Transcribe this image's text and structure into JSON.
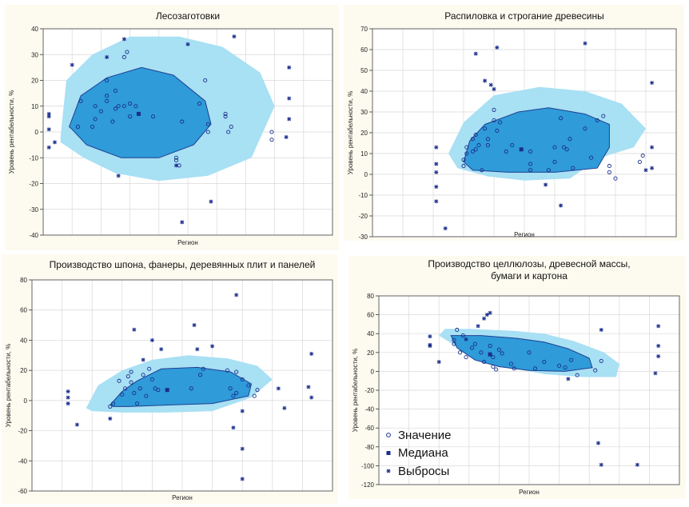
{
  "colors": {
    "outer": "#a8e0f4",
    "inner": "#2f9bd9",
    "innerStroke": "#1f3f8f",
    "point": "#1b2e8c",
    "grid": "#d8d8d8"
  },
  "legend": {
    "value_label": "Значение",
    "median_label": "Медиана",
    "outlier_label": "Выбросы"
  },
  "chart_data": [
    {
      "type": "scatter",
      "title": "Лесозаготовки",
      "xlabel": "Регион",
      "ylabel": "Уровень рентабельности, %",
      "ylim": [
        -40,
        40
      ],
      "yticks": [
        -40,
        -30,
        -20,
        -10,
        0,
        10,
        20,
        30,
        40
      ],
      "xlim": [
        0,
        100
      ],
      "outer_hull": [
        [
          6,
          -2
        ],
        [
          8,
          20
        ],
        [
          17,
          30
        ],
        [
          30,
          37
        ],
        [
          47,
          37
        ],
        [
          62,
          33
        ],
        [
          75,
          23
        ],
        [
          80,
          10
        ],
        [
          72,
          -10
        ],
        [
          57,
          -17
        ],
        [
          40,
          -19
        ],
        [
          25,
          -16
        ],
        [
          14,
          -10
        ],
        [
          6,
          -4
        ]
      ],
      "inner_hull": [
        [
          9,
          2
        ],
        [
          13,
          14
        ],
        [
          22,
          21
        ],
        [
          34,
          25
        ],
        [
          45,
          22
        ],
        [
          56,
          12
        ],
        [
          58,
          3
        ],
        [
          52,
          -5
        ],
        [
          40,
          -10
        ],
        [
          27,
          -10
        ],
        [
          15,
          -5
        ],
        [
          10,
          1
        ]
      ],
      "values": [
        [
          12,
          2
        ],
        [
          13,
          12
        ],
        [
          17,
          2
        ],
        [
          18,
          5
        ],
        [
          18,
          10
        ],
        [
          20,
          8
        ],
        [
          22,
          12
        ],
        [
          22,
          14
        ],
        [
          22,
          20
        ],
        [
          24,
          4
        ],
        [
          25,
          9
        ],
        [
          25,
          16
        ],
        [
          26,
          10
        ],
        [
          28,
          10
        ],
        [
          28,
          29
        ],
        [
          29,
          31
        ],
        [
          30,
          6
        ],
        [
          30,
          11
        ],
        [
          32,
          10
        ],
        [
          38,
          6
        ],
        [
          46,
          -10
        ],
        [
          46,
          -11
        ],
        [
          47,
          -13
        ],
        [
          48,
          4
        ],
        [
          54,
          11
        ],
        [
          56,
          20
        ],
        [
          57,
          0
        ],
        [
          57,
          3
        ],
        [
          63,
          6
        ],
        [
          63,
          7
        ],
        [
          64,
          0
        ],
        [
          65,
          2
        ],
        [
          79,
          0
        ],
        [
          79,
          -3
        ]
      ],
      "medians": [
        [
          33,
          7
        ]
      ],
      "outliers": [
        [
          2,
          7
        ],
        [
          2,
          6
        ],
        [
          2,
          1
        ],
        [
          2,
          -6
        ],
        [
          4,
          -4
        ],
        [
          10,
          26
        ],
        [
          26,
          -17
        ],
        [
          22,
          29
        ],
        [
          28,
          36
        ],
        [
          46,
          -13
        ],
        [
          50,
          34
        ],
        [
          48,
          -35
        ],
        [
          58,
          -27
        ],
        [
          66,
          37
        ],
        [
          85,
          25
        ],
        [
          85,
          13
        ],
        [
          85,
          5
        ],
        [
          84,
          -2
        ]
      ]
    },
    {
      "type": "scatter",
      "title": "Распиловка и строгание древесины",
      "xlabel": "Регион",
      "ylabel": "Уровень рентабельности, %",
      "ylim": [
        -30,
        70
      ],
      "yticks": [
        -30,
        -20,
        -10,
        0,
        10,
        20,
        30,
        40,
        50,
        60,
        70
      ],
      "xlim": [
        0,
        100
      ],
      "outer_hull": [
        [
          25,
          10
        ],
        [
          30,
          25
        ],
        [
          40,
          38
        ],
        [
          55,
          42
        ],
        [
          70,
          40
        ],
        [
          82,
          34
        ],
        [
          90,
          22
        ],
        [
          86,
          13
        ],
        [
          75,
          8
        ],
        [
          65,
          -2
        ],
        [
          50,
          -3
        ],
        [
          38,
          -1
        ],
        [
          28,
          3
        ]
      ],
      "inner_hull": [
        [
          30,
          6
        ],
        [
          32,
          16
        ],
        [
          37,
          24
        ],
        [
          48,
          30
        ],
        [
          58,
          32
        ],
        [
          70,
          29
        ],
        [
          78,
          24
        ],
        [
          78,
          13
        ],
        [
          74,
          3
        ],
        [
          60,
          1
        ],
        [
          45,
          1
        ],
        [
          33,
          2
        ]
      ],
      "values": [
        [
          30,
          4
        ],
        [
          30,
          7
        ],
        [
          31,
          10
        ],
        [
          31,
          13
        ],
        [
          33,
          11
        ],
        [
          33,
          17
        ],
        [
          34,
          12
        ],
        [
          34,
          19
        ],
        [
          35,
          14
        ],
        [
          36,
          2
        ],
        [
          37,
          22
        ],
        [
          38,
          14
        ],
        [
          38,
          17
        ],
        [
          40,
          26
        ],
        [
          40,
          31
        ],
        [
          41,
          21
        ],
        [
          42,
          25
        ],
        [
          44,
          11
        ],
        [
          46,
          14
        ],
        [
          52,
          2
        ],
        [
          52,
          5
        ],
        [
          52,
          11
        ],
        [
          58,
          2
        ],
        [
          60,
          6
        ],
        [
          60,
          13
        ],
        [
          62,
          27
        ],
        [
          63,
          13
        ],
        [
          64,
          12
        ],
        [
          65,
          17
        ],
        [
          66,
          3
        ],
        [
          70,
          22
        ],
        [
          72,
          8
        ],
        [
          74,
          26
        ],
        [
          76,
          28
        ],
        [
          78,
          1
        ],
        [
          78,
          4
        ],
        [
          80,
          -2
        ],
        [
          88,
          6
        ],
        [
          89,
          9
        ]
      ],
      "medians": [
        [
          49,
          12
        ]
      ],
      "outliers": [
        [
          21,
          13
        ],
        [
          21,
          5
        ],
        [
          21,
          1
        ],
        [
          21,
          -6
        ],
        [
          21,
          -13
        ],
        [
          24,
          -26
        ],
        [
          34,
          58
        ],
        [
          37,
          45
        ],
        [
          39,
          43
        ],
        [
          40,
          41
        ],
        [
          41,
          61
        ],
        [
          57,
          -5
        ],
        [
          62,
          -15
        ],
        [
          70,
          63
        ],
        [
          90,
          2
        ],
        [
          92,
          13
        ],
        [
          92,
          3
        ],
        [
          92,
          44
        ]
      ]
    },
    {
      "type": "scatter",
      "title": "Производство шпона, фанеры, деревянных плит и панелей",
      "xlabel": "Регион",
      "ylabel": "Уровень рентабельности, %",
      "ylim": [
        -60,
        80
      ],
      "yticks": [
        -60,
        -40,
        -20,
        0,
        20,
        40,
        60,
        80
      ],
      "xlim": [
        0,
        100
      ],
      "outer_hull": [
        [
          18,
          -5
        ],
        [
          22,
          10
        ],
        [
          30,
          20
        ],
        [
          40,
          27
        ],
        [
          52,
          30
        ],
        [
          65,
          28
        ],
        [
          75,
          23
        ],
        [
          80,
          14
        ],
        [
          73,
          2
        ],
        [
          60,
          -7
        ],
        [
          45,
          -8
        ],
        [
          30,
          -8
        ],
        [
          20,
          -7
        ]
      ],
      "inner_hull": [
        [
          26,
          -3
        ],
        [
          30,
          6
        ],
        [
          35,
          13
        ],
        [
          43,
          21
        ],
        [
          55,
          22
        ],
        [
          66,
          19
        ],
        [
          73,
          11
        ],
        [
          72,
          3
        ],
        [
          60,
          -2
        ],
        [
          45,
          -3
        ],
        [
          32,
          -4
        ],
        [
          27,
          -4
        ]
      ],
      "values": [
        [
          26,
          -4
        ],
        [
          27,
          -2
        ],
        [
          29,
          13
        ],
        [
          30,
          4
        ],
        [
          31,
          8
        ],
        [
          32,
          16
        ],
        [
          33,
          12
        ],
        [
          33,
          19
        ],
        [
          34,
          5
        ],
        [
          35,
          -2
        ],
        [
          36,
          8
        ],
        [
          37,
          17
        ],
        [
          38,
          3
        ],
        [
          39,
          21
        ],
        [
          40,
          14
        ],
        [
          41,
          8
        ],
        [
          42,
          7
        ],
        [
          53,
          8
        ],
        [
          56,
          17
        ],
        [
          57,
          21
        ],
        [
          65,
          20
        ],
        [
          66,
          8
        ],
        [
          67,
          3
        ],
        [
          68,
          5
        ],
        [
          68,
          19
        ],
        [
          70,
          14
        ],
        [
          72,
          10
        ],
        [
          74,
          3
        ],
        [
          75,
          7
        ]
      ],
      "medians": [
        [
          45,
          7
        ]
      ],
      "outliers": [
        [
          12,
          -2
        ],
        [
          12,
          2
        ],
        [
          12,
          6
        ],
        [
          15,
          -16
        ],
        [
          26,
          -12
        ],
        [
          34,
          47
        ],
        [
          37,
          27
        ],
        [
          40,
          40
        ],
        [
          43,
          34
        ],
        [
          54,
          50
        ],
        [
          55,
          34
        ],
        [
          60,
          36
        ],
        [
          68,
          70
        ],
        [
          67,
          -18
        ],
        [
          70,
          -7
        ],
        [
          70,
          -32
        ],
        [
          70,
          -52
        ],
        [
          82,
          8
        ],
        [
          84,
          -5
        ],
        [
          92,
          9
        ],
        [
          93,
          31
        ],
        [
          93,
          2
        ]
      ]
    },
    {
      "type": "scatter",
      "title": "Производство целлюлозы, древесной массы, бумаги и картона",
      "xlabel": "Регион",
      "ylabel": "Уровень рентабельности, %",
      "ylim": [
        -120,
        80
      ],
      "yticks": [
        -120,
        -100,
        -80,
        -60,
        -40,
        -20,
        0,
        20,
        40,
        60,
        80
      ],
      "xlim": [
        0,
        100
      ],
      "outer_hull": [
        [
          22,
          45
        ],
        [
          30,
          45
        ],
        [
          45,
          43
        ],
        [
          55,
          40
        ],
        [
          65,
          32
        ],
        [
          75,
          20
        ],
        [
          80,
          8
        ],
        [
          79,
          -6
        ],
        [
          68,
          -6
        ],
        [
          55,
          -3
        ],
        [
          45,
          3
        ],
        [
          35,
          15
        ],
        [
          25,
          28
        ],
        [
          20,
          38
        ]
      ],
      "inner_hull": [
        [
          24,
          38
        ],
        [
          34,
          38
        ],
        [
          46,
          35
        ],
        [
          55,
          31
        ],
        [
          63,
          24
        ],
        [
          70,
          14
        ],
        [
          71,
          4
        ],
        [
          62,
          0
        ],
        [
          50,
          1
        ],
        [
          40,
          5
        ],
        [
          32,
          12
        ],
        [
          26,
          25
        ]
      ],
      "values": [
        [
          25,
          33
        ],
        [
          25,
          29
        ],
        [
          26,
          44
        ],
        [
          27,
          20
        ],
        [
          28,
          38
        ],
        [
          29,
          15
        ],
        [
          31,
          25
        ],
        [
          32,
          29
        ],
        [
          34,
          20
        ],
        [
          35,
          10
        ],
        [
          37,
          27
        ],
        [
          38,
          5
        ],
        [
          38,
          15
        ],
        [
          39,
          2
        ],
        [
          40,
          23
        ],
        [
          41,
          19
        ],
        [
          44,
          8
        ],
        [
          45,
          3
        ],
        [
          50,
          20
        ],
        [
          52,
          3
        ],
        [
          55,
          10
        ],
        [
          60,
          6
        ],
        [
          62,
          4
        ],
        [
          64,
          12
        ],
        [
          66,
          -4
        ],
        [
          72,
          1
        ],
        [
          74,
          11
        ]
      ],
      "medians": [
        [
          37,
          18
        ]
      ],
      "outliers": [
        [
          17,
          27
        ],
        [
          17,
          28
        ],
        [
          17,
          37
        ],
        [
          20,
          10
        ],
        [
          29,
          34
        ],
        [
          33,
          48
        ],
        [
          35,
          56
        ],
        [
          36,
          60
        ],
        [
          37,
          62
        ],
        [
          63,
          -8
        ],
        [
          74,
          44
        ],
        [
          73,
          -76
        ],
        [
          74,
          -99
        ],
        [
          86,
          -99
        ],
        [
          92,
          -2
        ],
        [
          93,
          48
        ],
        [
          93,
          27
        ],
        [
          93,
          16
        ]
      ]
    }
  ]
}
